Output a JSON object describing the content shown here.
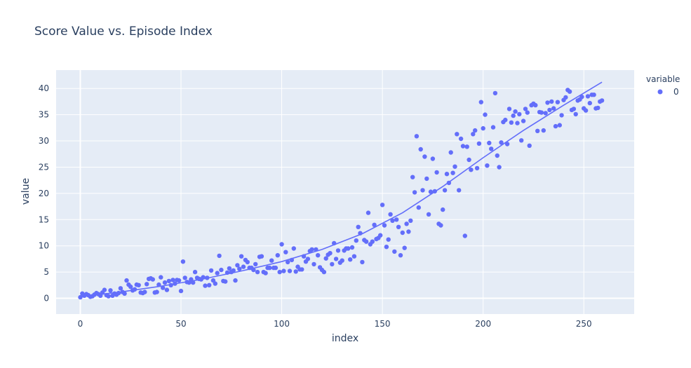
{
  "chart_data": {
    "type": "scatter",
    "title": "Score Value vs. Episode Index",
    "xlabel": "index",
    "ylabel": "value",
    "xlim": [
      -12,
      275
    ],
    "ylim": [
      -3,
      43.5
    ],
    "xticks": [
      0,
      50,
      100,
      150,
      200,
      250
    ],
    "yticks": [
      0,
      5,
      10,
      15,
      20,
      25,
      30,
      35,
      40
    ],
    "grid": true,
    "legend": {
      "title": "variable",
      "placement": "top-right",
      "entries": [
        "0"
      ]
    },
    "colors": {
      "marker": "#636efa",
      "plot_bg": "#e5ecf6",
      "grid": "#ffffff",
      "text": "#2a3f5f"
    },
    "trendline": {
      "x": [
        0,
        20,
        40,
        60,
        80,
        100,
        120,
        140,
        160,
        180,
        200,
        220,
        240,
        259
      ],
      "y": [
        0.3,
        1.2,
        2.3,
        3.6,
        5.2,
        7.0,
        9.3,
        12.3,
        16.3,
        21.3,
        26.8,
        32.0,
        36.8,
        41.2
      ]
    },
    "series": [
      {
        "name": "0",
        "x": [
          0,
          1,
          2,
          3,
          4,
          5,
          6,
          7,
          8,
          9,
          10,
          11,
          12,
          13,
          14,
          15,
          16,
          17,
          18,
          19,
          20,
          21,
          22,
          23,
          24,
          25,
          26,
          27,
          28,
          29,
          30,
          31,
          32,
          33,
          34,
          35,
          36,
          37,
          38,
          39,
          40,
          41,
          42,
          43,
          44,
          45,
          46,
          47,
          48,
          49,
          50,
          51,
          52,
          53,
          54,
          55,
          56,
          57,
          58,
          59,
          60,
          61,
          62,
          63,
          64,
          65,
          66,
          67,
          68,
          69,
          70,
          71,
          72,
          73,
          74,
          75,
          76,
          77,
          78,
          79,
          80,
          81,
          82,
          83,
          84,
          85,
          86,
          87,
          88,
          89,
          90,
          91,
          92,
          93,
          94,
          95,
          96,
          97,
          98,
          99,
          100,
          101,
          102,
          103,
          104,
          105,
          106,
          107,
          108,
          109,
          110,
          111,
          112,
          113,
          114,
          115,
          116,
          117,
          118,
          119,
          120,
          121,
          122,
          123,
          124,
          125,
          126,
          127,
          128,
          129,
          130,
          131,
          132,
          133,
          134,
          135,
          136,
          137,
          138,
          139,
          140,
          141,
          142,
          143,
          144,
          145,
          146,
          147,
          148,
          149,
          150,
          151,
          152,
          153,
          154,
          155,
          156,
          157,
          158,
          159,
          160,
          161,
          162,
          163,
          164,
          165,
          166,
          167,
          168,
          169,
          170,
          171,
          172,
          173,
          174,
          175,
          176,
          177,
          178,
          179,
          180,
          181,
          182,
          183,
          184,
          185,
          186,
          187,
          188,
          189,
          190,
          191,
          192,
          193,
          194,
          195,
          196,
          197,
          198,
          199,
          200,
          201,
          202,
          203,
          204,
          205,
          206,
          207,
          208,
          209,
          210,
          211,
          212,
          213,
          214,
          215,
          216,
          217,
          218,
          219,
          220,
          221,
          222,
          223,
          224,
          225,
          226,
          227,
          228,
          229,
          230,
          231,
          232,
          233,
          234,
          235,
          236,
          237,
          238,
          239,
          240,
          241,
          242,
          243,
          244,
          245,
          246,
          247,
          248,
          249,
          250,
          251,
          252,
          253,
          254,
          255,
          256,
          257,
          258,
          259
        ],
        "y": [
          0.2,
          0.9,
          0.5,
          0.8,
          0.6,
          0.3,
          0.4,
          0.7,
          1.0,
          0.8,
          0.5,
          1.1,
          1.6,
          0.6,
          0.4,
          1.5,
          0.5,
          0.9,
          0.7,
          1.0,
          1.9,
          1.2,
          0.9,
          3.4,
          2.6,
          2.2,
          1.5,
          1.7,
          2.6,
          2.5,
          1.1,
          1.0,
          1.2,
          2.7,
          3.7,
          3.8,
          3.6,
          1.1,
          1.2,
          2.6,
          4.0,
          2.0,
          3.0,
          1.6,
          3.3,
          2.5,
          3.5,
          2.8,
          3.5,
          3.4,
          1.4,
          7.0,
          3.9,
          3.1,
          3.0,
          3.6,
          3.0,
          5.0,
          3.9,
          3.7,
          3.6,
          4.0,
          2.4,
          3.9,
          2.5,
          5.3,
          3.4,
          2.8,
          4.8,
          8.1,
          5.4,
          3.3,
          3.2,
          4.9,
          5.7,
          5.0,
          5.3,
          3.4,
          6.3,
          5.6,
          8.0,
          6.0,
          7.3,
          6.9,
          5.8,
          5.8,
          5.4,
          6.5,
          5.0,
          7.9,
          8.0,
          5.0,
          4.8,
          5.8,
          5.8,
          7.2,
          5.8,
          5.8,
          8.2,
          5.0,
          10.3,
          5.2,
          8.8,
          6.9,
          5.2,
          7.3,
          9.5,
          5.1,
          6.0,
          5.5,
          5.5,
          8.0,
          7.0,
          7.5,
          9.0,
          9.3,
          6.5,
          9.3,
          8.2,
          5.9,
          5.4,
          5.0,
          7.6,
          8.3,
          8.6,
          6.5,
          10.5,
          7.5,
          9.1,
          6.8,
          7.2,
          9.1,
          9.5,
          9.5,
          7.4,
          9.7,
          8.0,
          11.0,
          13.6,
          12.4,
          6.9,
          11.1,
          10.8,
          16.3,
          10.3,
          10.8,
          14.0,
          11.3,
          11.5,
          12.0,
          17.8,
          13.9,
          9.8,
          11.2,
          16.0,
          14.8,
          8.9,
          15.0,
          13.6,
          8.2,
          12.5,
          9.6,
          14.2,
          12.7,
          14.8,
          23.1,
          20.2,
          30.9,
          17.3,
          28.4,
          20.6,
          27.0,
          22.8,
          16.0,
          20.3,
          26.6,
          20.4,
          24.0,
          14.2,
          13.9,
          16.9,
          20.6,
          23.7,
          22.0,
          27.8,
          23.9,
          25.1,
          31.3,
          20.6,
          30.4,
          29.0,
          11.9,
          28.9,
          26.4,
          24.5,
          31.3,
          32.0,
          24.8,
          29.5,
          37.4,
          32.4,
          35.0,
          25.3,
          29.6,
          28.5,
          32.6,
          39.1,
          27.2,
          25.0,
          29.7,
          33.6,
          34.0,
          29.4,
          36.1,
          33.5,
          34.8,
          35.6,
          33.4,
          35.1,
          30.1,
          33.8,
          36.1,
          35.4,
          29.1,
          36.8,
          37.1,
          36.8,
          31.9,
          35.5,
          35.4,
          32.0,
          35.3,
          37.3,
          35.9,
          37.5,
          36.2,
          32.8,
          37.4,
          33.0,
          34.9,
          37.8,
          38.3,
          39.7,
          39.4,
          35.9,
          36.1,
          35.1,
          37.7,
          37.9,
          38.4,
          36.2,
          35.8,
          38.5,
          37.2,
          38.8,
          38.8,
          36.2,
          36.3,
          37.5,
          37.7
        ]
      }
    ]
  }
}
